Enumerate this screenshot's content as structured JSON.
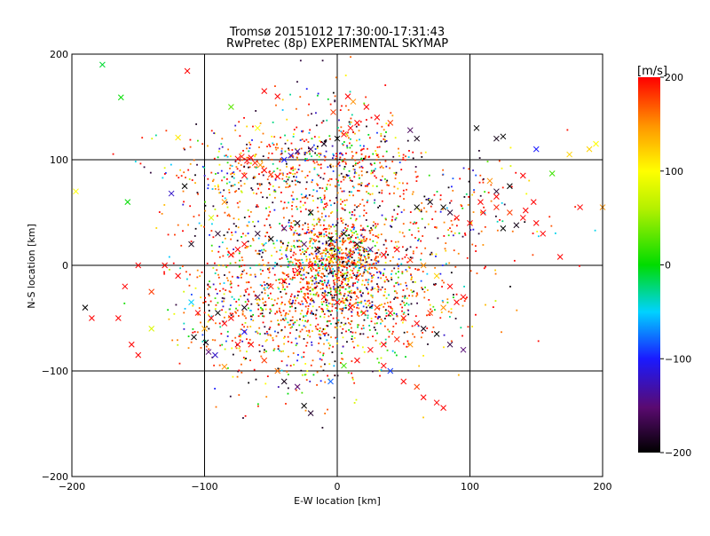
{
  "chart_data": {
    "type": "scatter",
    "title": "Tromsø 20151012 17:30:00-17:31:43",
    "subtitle": "RwPretec (8p) EXPERIMENTAL SKYMAP",
    "xlabel": "E-W location [km]",
    "ylabel": "N-S location [km]",
    "xlim": [
      -200,
      200
    ],
    "ylim": [
      -200,
      200
    ],
    "x_ticks": [
      -200,
      -100,
      0,
      100,
      200
    ],
    "y_ticks": [
      -200,
      -100,
      0,
      100,
      200
    ],
    "grid": true,
    "colorbar": {
      "label": "[m/s]",
      "range": [
        -200,
        200
      ],
      "ticks": [
        200,
        100,
        0,
        -100,
        -200
      ]
    },
    "series": [
      {
        "marker": "x",
        "points": [
          [
            -177,
            190,
            -10
          ],
          [
            -113,
            184,
            210
          ],
          [
            -163,
            159,
            0
          ],
          [
            -120,
            121,
            110
          ],
          [
            -75,
            101,
            200
          ],
          [
            -72,
            103,
            190
          ],
          [
            -68,
            99,
            200
          ],
          [
            -65,
            102,
            210
          ],
          [
            -62,
            97,
            190
          ],
          [
            -58,
            95,
            150
          ],
          [
            -55,
            90,
            200
          ],
          [
            -50,
            86,
            180
          ],
          [
            -45,
            84,
            210
          ],
          [
            -40,
            100,
            -100
          ],
          [
            -35,
            104,
            -120
          ],
          [
            -30,
            108,
            -140
          ],
          [
            -20,
            110,
            -160
          ],
          [
            -10,
            115,
            -190
          ],
          [
            0,
            120,
            -200
          ],
          [
            5,
            124,
            200
          ],
          [
            10,
            130,
            210
          ],
          [
            15,
            135,
            200
          ],
          [
            12,
            155,
            150
          ],
          [
            -3,
            145,
            180
          ],
          [
            8,
            160,
            200
          ],
          [
            22,
            150,
            210
          ],
          [
            30,
            140,
            200
          ],
          [
            40,
            135,
            180
          ],
          [
            55,
            128,
            -160
          ],
          [
            60,
            120,
            -190
          ],
          [
            -80,
            150,
            30
          ],
          [
            -55,
            165,
            200
          ],
          [
            -45,
            160,
            210
          ],
          [
            -60,
            130,
            100
          ],
          [
            -70,
            85,
            200
          ],
          [
            -85,
            60,
            150
          ],
          [
            -95,
            45,
            80
          ],
          [
            -90,
            30,
            -180
          ],
          [
            -110,
            20,
            -190
          ],
          [
            -130,
            0,
            200
          ],
          [
            -150,
            0,
            210
          ],
          [
            -160,
            -20,
            200
          ],
          [
            -140,
            -25,
            180
          ],
          [
            -120,
            -10,
            200
          ],
          [
            -110,
            -35,
            -50
          ],
          [
            -105,
            -45,
            200
          ],
          [
            -95,
            -50,
            210
          ],
          [
            -100,
            -60,
            140
          ],
          [
            -108,
            -68,
            -200
          ],
          [
            -99,
            -73,
            -190
          ],
          [
            -97,
            -82,
            -150
          ],
          [
            -92,
            -85,
            -120
          ],
          [
            -85,
            -96,
            150
          ],
          [
            -75,
            -75,
            200
          ],
          [
            -70,
            -63,
            -100
          ],
          [
            -65,
            -75,
            210
          ],
          [
            -55,
            -90,
            180
          ],
          [
            -45,
            -100,
            160
          ],
          [
            -40,
            -110,
            -190
          ],
          [
            -30,
            -115,
            -150
          ],
          [
            -25,
            -133,
            -200
          ],
          [
            -20,
            -140,
            -180
          ],
          [
            -5,
            -110,
            -80
          ],
          [
            5,
            -95,
            20
          ],
          [
            15,
            -90,
            200
          ],
          [
            25,
            -80,
            210
          ],
          [
            35,
            -75,
            200
          ],
          [
            45,
            -70,
            190
          ],
          [
            55,
            -75,
            150
          ],
          [
            65,
            -60,
            -190
          ],
          [
            75,
            -65,
            -200
          ],
          [
            85,
            -75,
            -170
          ],
          [
            95,
            -80,
            -150
          ],
          [
            35,
            -95,
            200
          ],
          [
            40,
            -100,
            -90
          ],
          [
            50,
            -110,
            200
          ],
          [
            60,
            -115,
            180
          ],
          [
            65,
            -125,
            200
          ],
          [
            75,
            -130,
            210
          ],
          [
            80,
            -135,
            200
          ],
          [
            -165,
            -50,
            200
          ],
          [
            -155,
            -75,
            210
          ],
          [
            -150,
            -85,
            200
          ],
          [
            -140,
            -60,
            80
          ],
          [
            -190,
            -40,
            -200
          ],
          [
            -185,
            -50,
            200
          ],
          [
            -20,
            50,
            -200
          ],
          [
            -30,
            40,
            -190
          ],
          [
            -40,
            35,
            -150
          ],
          [
            -50,
            25,
            -200
          ],
          [
            -60,
            30,
            -180
          ],
          [
            -70,
            20,
            200
          ],
          [
            -75,
            15,
            210
          ],
          [
            -80,
            10,
            200
          ],
          [
            -25,
            20,
            -160
          ],
          [
            -15,
            15,
            -190
          ],
          [
            -5,
            25,
            -200
          ],
          [
            5,
            30,
            -200
          ],
          [
            15,
            20,
            -190
          ],
          [
            25,
            15,
            -150
          ],
          [
            35,
            10,
            210
          ],
          [
            45,
            15,
            200
          ],
          [
            55,
            5,
            180
          ],
          [
            65,
            0,
            150
          ],
          [
            75,
            -10,
            120
          ],
          [
            85,
            -20,
            200
          ],
          [
            95,
            -30,
            210
          ],
          [
            -20,
            0,
            200
          ],
          [
            -30,
            -5,
            210
          ],
          [
            -40,
            -15,
            200
          ],
          [
            -50,
            -20,
            190
          ],
          [
            -60,
            -30,
            -160
          ],
          [
            -70,
            -40,
            -190
          ],
          [
            -80,
            -50,
            200
          ],
          [
            -85,
            -55,
            210
          ],
          [
            -90,
            -45,
            -200
          ],
          [
            -10,
            -30,
            200
          ],
          [
            0,
            -35,
            210
          ],
          [
            10,
            -40,
            200
          ],
          [
            20,
            -45,
            190
          ],
          [
            30,
            -40,
            180
          ],
          [
            40,
            -45,
            200
          ],
          [
            50,
            -50,
            210
          ],
          [
            60,
            -55,
            200
          ],
          [
            70,
            -45,
            180
          ],
          [
            80,
            -40,
            150
          ],
          [
            90,
            -35,
            200
          ],
          [
            60,
            55,
            -200
          ],
          [
            70,
            60,
            -190
          ],
          [
            80,
            55,
            -200
          ],
          [
            85,
            50,
            -180
          ],
          [
            90,
            45,
            200
          ],
          [
            100,
            40,
            210
          ],
          [
            110,
            50,
            200
          ],
          [
            120,
            55,
            190
          ],
          [
            130,
            50,
            180
          ],
          [
            140,
            45,
            200
          ],
          [
            150,
            40,
            210
          ],
          [
            105,
            130,
            -200
          ],
          [
            120,
            120,
            -190
          ],
          [
            125,
            122,
            -200
          ],
          [
            150,
            110,
            -100
          ],
          [
            175,
            105,
            120
          ],
          [
            190,
            110,
            120
          ],
          [
            195,
            115,
            100
          ],
          [
            162,
            87,
            20
          ],
          [
            140,
            85,
            200
          ],
          [
            130,
            75,
            -200
          ],
          [
            120,
            70,
            -180
          ],
          [
            115,
            80,
            150
          ],
          [
            108,
            60,
            210
          ],
          [
            120,
            65,
            200
          ],
          [
            125,
            35,
            -200
          ],
          [
            135,
            38,
            -190
          ],
          [
            142,
            52,
            210
          ],
          [
            148,
            60,
            200
          ],
          [
            155,
            30,
            200
          ],
          [
            168,
            8,
            200
          ],
          [
            183,
            55,
            200
          ],
          [
            200,
            55,
            150
          ],
          [
            -197,
            70,
            100
          ],
          [
            -158,
            60,
            0
          ],
          [
            -115,
            75,
            -200
          ],
          [
            -125,
            68,
            -120
          ]
        ]
      },
      {
        "marker": "dot",
        "clusters": [
          {
            "cx": 0,
            "cy": 5,
            "sx": 18,
            "sy": 22,
            "n": 700
          },
          {
            "cx": -10,
            "cy": -40,
            "sx": 40,
            "sy": 25,
            "n": 520
          },
          {
            "cx": -50,
            "cy": 90,
            "sx": 40,
            "sy": 20,
            "n": 380
          },
          {
            "cx": 0,
            "cy": 120,
            "sx": 25,
            "sy": 30,
            "n": 160
          },
          {
            "cx": 20,
            "cy": 90,
            "sx": 25,
            "sy": 20,
            "n": 160
          },
          {
            "cx": 40,
            "cy": -20,
            "sx": 35,
            "sy": 30,
            "n": 300
          },
          {
            "cx": -70,
            "cy": -40,
            "sx": 25,
            "sy": 30,
            "n": 240
          },
          {
            "cx": -30,
            "cy": 30,
            "sx": 30,
            "sy": 25,
            "n": 250
          },
          {
            "cx": 60,
            "cy": 40,
            "sx": 35,
            "sy": 30,
            "n": 140
          },
          {
            "cx": -20,
            "cy": -90,
            "sx": 30,
            "sy": 25,
            "n": 120
          },
          {
            "cx": -90,
            "cy": 20,
            "sx": 20,
            "sy": 40,
            "n": 90
          },
          {
            "cx": 110,
            "cy": 60,
            "sx": 40,
            "sy": 25,
            "n": 60
          }
        ]
      }
    ]
  }
}
